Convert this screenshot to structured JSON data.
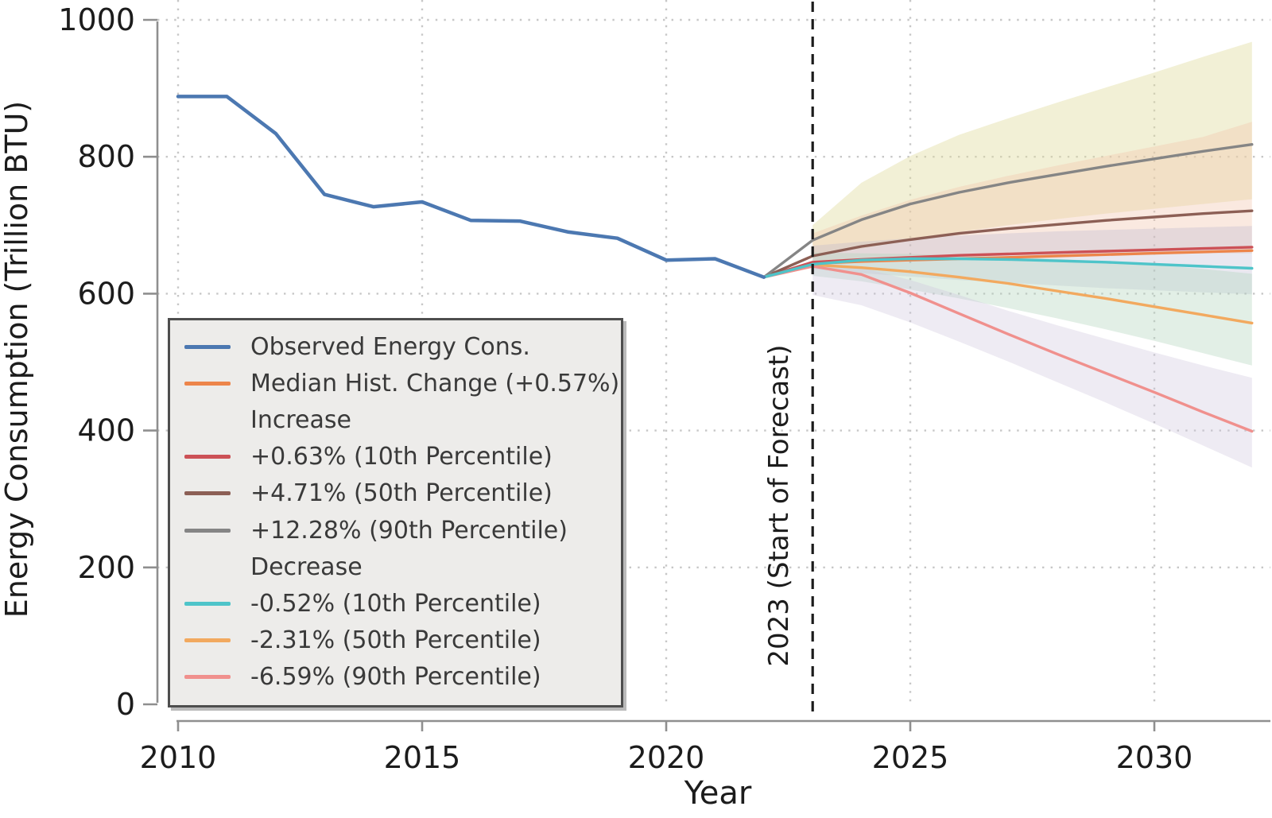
{
  "page": {
    "background": "#ffffff"
  },
  "chart_data": {
    "type": "line",
    "title": "",
    "xlabel": "Year",
    "ylabel": "Energy Consumption (Trillion BTU)",
    "xlim": [
      2009.6,
      2032.4
    ],
    "ylim": [
      0,
      1000
    ],
    "x_ticks": [
      2010,
      2015,
      2020,
      2025,
      2030
    ],
    "y_ticks": [
      0,
      200,
      400,
      600,
      800,
      1000
    ],
    "grid": "dotted",
    "legend_position": "lower left",
    "forecast_annotation": {
      "x": 2023,
      "label": "2023 (Start of Forecast)"
    },
    "series": [
      {
        "id": "median",
        "name": "Median Hist. Change (+0.57%)",
        "color": "#ED854A",
        "x": [
          2022,
          2023,
          2024,
          2025,
          2026,
          2027,
          2028,
          2029,
          2030,
          2031,
          2032
        ],
        "y": [
          624,
          644,
          647,
          649,
          651,
          653,
          655,
          657,
          659,
          661,
          663
        ]
      },
      {
        "id": "inc-10",
        "name": "+0.63% (10th Percentile)",
        "color": "#CC5156",
        "x": [
          2022,
          2023,
          2024,
          2025,
          2026,
          2027,
          2028,
          2029,
          2030,
          2031,
          2032
        ],
        "y": [
          624,
          646,
          650,
          653,
          656,
          658,
          660,
          662,
          664,
          666,
          668
        ]
      },
      {
        "id": "inc-50",
        "name": "+4.71% (50th Percentile)",
        "color": "#8C5F55",
        "x": [
          2022,
          2023,
          2024,
          2025,
          2026,
          2027,
          2028,
          2029,
          2030,
          2031,
          2032
        ],
        "y": [
          624,
          655,
          669,
          679,
          688,
          695,
          701,
          707,
          712,
          717,
          721
        ]
      },
      {
        "id": "inc-90",
        "name": "+12.28% (90th Percentile)",
        "color": "#858585",
        "x": [
          2022,
          2023,
          2024,
          2025,
          2026,
          2027,
          2028,
          2029,
          2030,
          2031,
          2032
        ],
        "y": [
          624,
          678,
          708,
          731,
          748,
          762,
          774,
          786,
          797,
          808,
          818
        ]
      },
      {
        "id": "dec-50",
        "name": "-2.31% (50th Percentile)",
        "color": "#F2A95F",
        "x": [
          2022,
          2023,
          2024,
          2025,
          2026,
          2027,
          2028,
          2029,
          2030,
          2031,
          2032
        ],
        "y": [
          624,
          642,
          638,
          632,
          624,
          615,
          604,
          593,
          581,
          569,
          557
        ]
      },
      {
        "id": "dec-90",
        "name": "-6.59% (90th Percentile)",
        "color": "#F0908D",
        "x": [
          2022,
          2023,
          2024,
          2025,
          2026,
          2027,
          2028,
          2029,
          2030,
          2031,
          2032
        ],
        "y": [
          624,
          640,
          628,
          601,
          571,
          541,
          512,
          484,
          456,
          427,
          399
        ]
      },
      {
        "id": "dec-10",
        "name": "-0.52% (10th Percentile)",
        "color": "#4EC4C9",
        "x": [
          2022,
          2023,
          2024,
          2025,
          2026,
          2027,
          2028,
          2029,
          2030,
          2031,
          2032
        ],
        "y": [
          624,
          643,
          649,
          651,
          651,
          650,
          648,
          646,
          643,
          640,
          637
        ]
      },
      {
        "id": "observed",
        "name": "Observed Energy Cons.",
        "color": "#4C78B1",
        "x": [
          2010,
          2011,
          2012,
          2013,
          2014,
          2015,
          2016,
          2017,
          2018,
          2019,
          2020,
          2021,
          2022
        ],
        "y": [
          888,
          888,
          834,
          745,
          727,
          734,
          707,
          706,
          690,
          681,
          649,
          651,
          624
        ]
      }
    ],
    "bands": [
      {
        "id": "band-inc-90",
        "color": "#DFDC9E",
        "opacity": 0.42,
        "x": [
          2023,
          2024,
          2025,
          2026,
          2027,
          2028,
          2029,
          2030,
          2031,
          2032
        ],
        "hi": [
          700,
          762,
          801,
          832,
          856,
          879,
          901,
          923,
          946,
          968
        ],
        "lo": [
          656,
          666,
          678,
          690,
          700,
          709,
          717,
          724,
          731,
          738
        ]
      },
      {
        "id": "band-inc-50",
        "color": "#F2C4AE",
        "opacity": 0.38,
        "x": [
          2023,
          2024,
          2025,
          2026,
          2027,
          2028,
          2029,
          2030,
          2031,
          2032
        ],
        "hi": [
          688,
          714,
          737,
          756,
          772,
          787,
          801,
          815,
          829,
          851
        ],
        "lo": [
          644,
          647,
          651,
          654,
          656,
          657,
          658,
          659,
          659,
          659
        ]
      },
      {
        "id": "band-inc-10",
        "color": "#B7B2CE",
        "opacity": 0.3,
        "x": [
          2023,
          2024,
          2025,
          2026,
          2027,
          2028,
          2029,
          2030,
          2031,
          2032
        ],
        "hi": [
          670,
          676,
          681,
          685,
          688,
          691,
          693,
          695,
          697,
          699
        ],
        "lo": [
          636,
          630,
          625,
          620,
          616,
          612,
          608,
          605,
          602,
          599
        ]
      },
      {
        "id": "band-dec",
        "color": "#B2D4BC",
        "opacity": 0.38,
        "x": [
          2023,
          2024,
          2025,
          2026,
          2027,
          2028,
          2029,
          2030,
          2031,
          2032
        ],
        "hi": [
          660,
          659,
          658,
          656,
          654,
          651,
          647,
          642,
          636,
          629
        ],
        "lo": [
          626,
          618,
          606,
          593,
          579,
          564,
          548,
          531,
          513,
          495
        ]
      },
      {
        "id": "band-dec-90",
        "color": "#CDC5DC",
        "opacity": 0.35,
        "x": [
          2023,
          2024,
          2025,
          2026,
          2027,
          2028,
          2029,
          2030,
          2031,
          2032
        ],
        "hi": [
          648,
          638,
          620,
          598,
          575,
          554,
          534,
          514,
          495,
          477
        ],
        "lo": [
          598,
          583,
          558,
          530,
          501,
          471,
          441,
          410,
          378,
          346
        ]
      }
    ]
  },
  "legend": {
    "items": [
      {
        "id": "observed",
        "type": "line",
        "color": "#4C78B1",
        "label": "Observed Energy Cons."
      },
      {
        "id": "median",
        "type": "line",
        "color": "#ED854A",
        "label": "Median Hist. Change (+0.57%)"
      },
      {
        "id": "increase-header",
        "type": "header",
        "label": "Increase"
      },
      {
        "id": "inc-10",
        "type": "line",
        "color": "#CC5156",
        "label": "+0.63% (10th Percentile)"
      },
      {
        "id": "inc-50",
        "type": "line",
        "color": "#8C5F55",
        "label": "+4.71% (50th Percentile)"
      },
      {
        "id": "inc-90",
        "type": "line",
        "color": "#858585",
        "label": "+12.28% (90th Percentile)"
      },
      {
        "id": "decrease-header",
        "type": "header",
        "label": "Decrease"
      },
      {
        "id": "dec-10",
        "type": "line",
        "color": "#4EC4C9",
        "label": "-0.52% (10th Percentile)"
      },
      {
        "id": "dec-50",
        "type": "line",
        "color": "#F2A95F",
        "label": "-2.31% (50th Percentile)"
      },
      {
        "id": "dec-90",
        "type": "line",
        "color": "#F0908D",
        "label": "-6.59% (90th Percentile)"
      }
    ]
  }
}
